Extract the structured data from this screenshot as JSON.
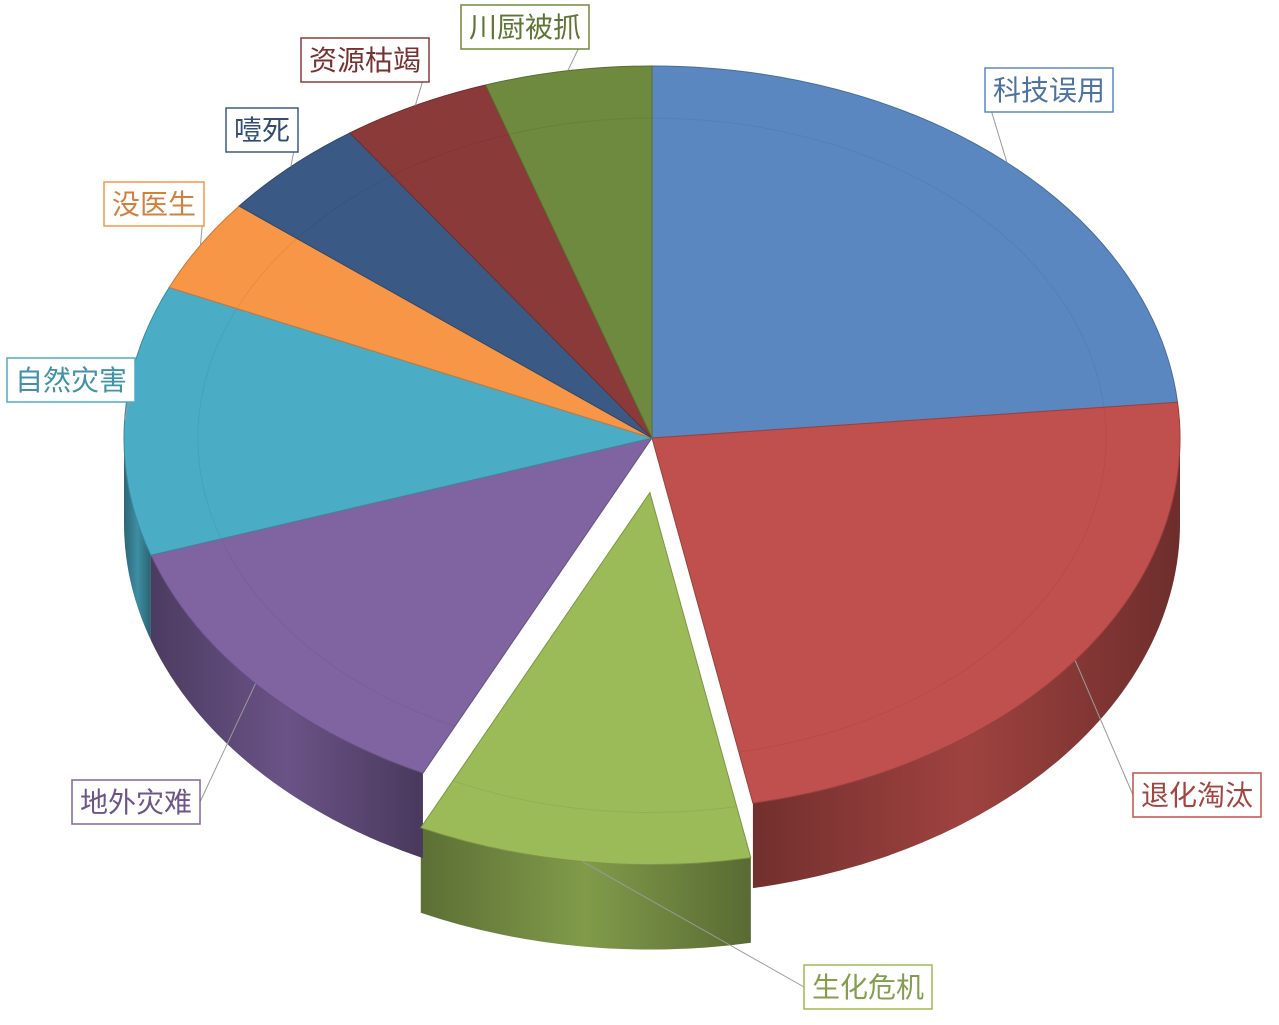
{
  "chart_data": {
    "type": "pie",
    "style": "3d-tilted",
    "title": "",
    "slices": [
      {
        "label": "科技误用",
        "value": 23.0,
        "color": "#5b87c1"
      },
      {
        "label": "退化淘汰",
        "value": 23.0,
        "color": "#c0504d"
      },
      {
        "label": "生化危机",
        "value": 10.0,
        "color": "#9bbb59"
      },
      {
        "label": "地外灾难",
        "value": 12.5,
        "color": "#8064a2"
      },
      {
        "label": "自然灾害",
        "value": 11.5,
        "color": "#4bacc6"
      },
      {
        "label": "没医生",
        "value": 4.0,
        "color": "#f79646"
      },
      {
        "label": "噎死",
        "value": 4.5,
        "color": "#3a5a85"
      },
      {
        "label": "资源枯竭",
        "value": 4.5,
        "color": "#8b3a3a"
      },
      {
        "label": "川厨被抓",
        "value": 5.0,
        "color": "#6e8a3e"
      }
    ],
    "exploded": [
      "生化危机"
    ],
    "legend": "callout labels with leader lines"
  }
}
